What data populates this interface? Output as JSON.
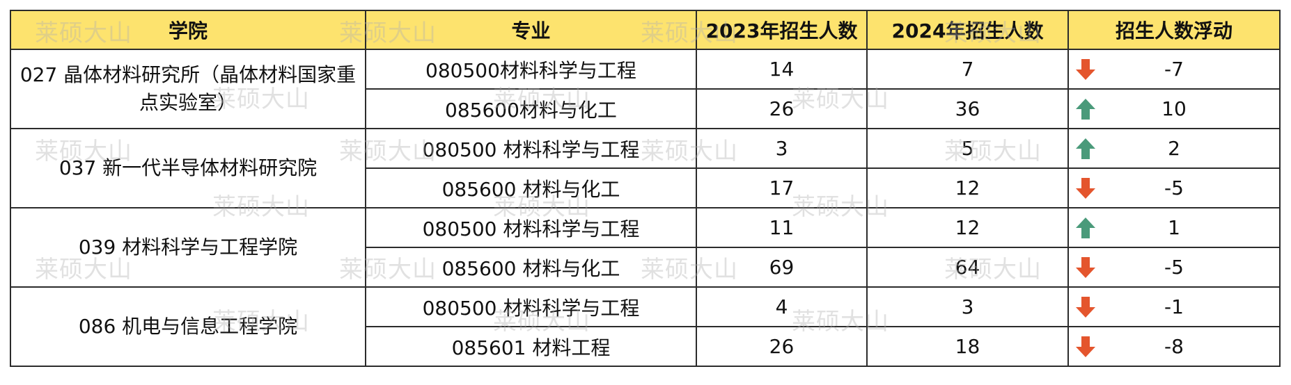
{
  "headers": {
    "school": "学院",
    "major": "专业",
    "y2023": "2023年招生人数",
    "y2024": "2024年招生人数",
    "change": "招生人数浮动"
  },
  "watermark": "莱硕大山",
  "colors": {
    "header_bg": "#fde36e",
    "down_arrow": "#e4552d",
    "up_arrow": "#4a9a7a"
  },
  "groups": [
    {
      "school": "027 晶体材料研究所（晶体材料国家重点实验室）",
      "rows": [
        {
          "major": "080500材料科学与工程",
          "y2023": "14",
          "y2024": "7",
          "change": "-7",
          "trend": "down"
        },
        {
          "major": "085600材料与化工",
          "y2023": "26",
          "y2024": "36",
          "change": "10",
          "trend": "up"
        }
      ]
    },
    {
      "school": "037 新一代半导体材料研究院",
      "rows": [
        {
          "major": "080500 材料科学与工程",
          "y2023": "3",
          "y2024": "5",
          "change": "2",
          "trend": "up"
        },
        {
          "major": "085600 材料与化工",
          "y2023": "17",
          "y2024": "12",
          "change": "-5",
          "trend": "down"
        }
      ]
    },
    {
      "school": "039 材料科学与工程学院",
      "rows": [
        {
          "major": "080500 材料科学与工程",
          "y2023": "11",
          "y2024": "12",
          "change": "1",
          "trend": "up"
        },
        {
          "major": "085600 材料与化工",
          "y2023": "69",
          "y2024": "64",
          "change": "-5",
          "trend": "down"
        }
      ]
    },
    {
      "school": "086 机电与信息工程学院",
      "rows": [
        {
          "major": "080500 材料科学与工程",
          "y2023": "4",
          "y2024": "3",
          "change": "-1",
          "trend": "down"
        },
        {
          "major": "085601 材料工程",
          "y2023": "26",
          "y2024": "18",
          "change": "-8",
          "trend": "down"
        }
      ]
    }
  ]
}
